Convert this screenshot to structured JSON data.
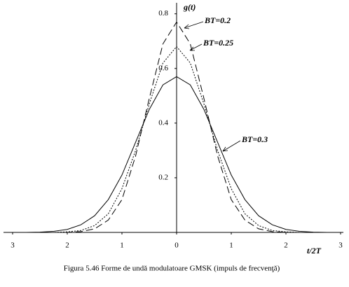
{
  "chart_data": {
    "type": "line",
    "x_label": "t/2T",
    "y_label": "g(t)",
    "caption": "Figura 5.46 Forme de undă modulatoare GMSK (impuls de frecvenţă)",
    "x": [
      -3,
      -2.75,
      -2.5,
      -2.25,
      -2,
      -1.75,
      -1.5,
      -1.25,
      -1,
      -0.75,
      -0.5,
      -0.25,
      0,
      0.25,
      0.5,
      0.75,
      1,
      1.25,
      1.5,
      1.75,
      2,
      2.25,
      2.5,
      2.75,
      3
    ],
    "series": [
      {
        "name": "BT=0.2",
        "color": "#000000",
        "style": "dashed",
        "values": [
          0,
          0,
          0,
          0,
          0,
          0.003,
          0.013,
          0.045,
          0.12,
          0.28,
          0.49,
          0.69,
          0.77,
          0.69,
          0.49,
          0.28,
          0.12,
          0.045,
          0.013,
          0.003,
          0,
          0,
          0,
          0,
          0
        ]
      },
      {
        "name": "BT=0.25",
        "color": "#000000",
        "style": "dotted",
        "values": [
          0,
          0,
          0,
          0,
          0.002,
          0.007,
          0.025,
          0.068,
          0.16,
          0.3,
          0.47,
          0.62,
          0.68,
          0.62,
          0.47,
          0.3,
          0.16,
          0.068,
          0.025,
          0.007,
          0.002,
          0,
          0,
          0,
          0
        ]
      },
      {
        "name": "BT=0.3",
        "color": "#000000",
        "style": "solid",
        "values": [
          0,
          0,
          0.001,
          0.004,
          0.011,
          0.028,
          0.061,
          0.12,
          0.21,
          0.33,
          0.45,
          0.54,
          0.57,
          0.54,
          0.45,
          0.33,
          0.21,
          0.12,
          0.061,
          0.028,
          0.011,
          0.004,
          0.001,
          0,
          0
        ]
      }
    ],
    "xlim": [
      -3,
      3
    ],
    "xticks": [
      {
        "value": -3,
        "label": "3"
      },
      {
        "value": -2,
        "label": "2"
      },
      {
        "value": -1,
        "label": "1"
      },
      0,
      1,
      2,
      3
    ],
    "ylim": [
      0,
      0.83
    ],
    "yticks": [
      0.2,
      0.4,
      0.6,
      0.8
    ],
    "grid": false
  }
}
